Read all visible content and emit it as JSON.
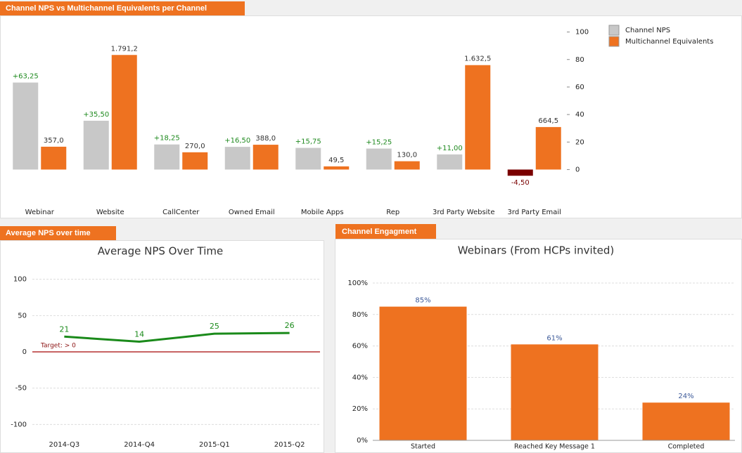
{
  "chart_data": [
    {
      "type": "bar",
      "title": "Channel NPS vs Multichannel Equivalents per Channel",
      "categories": [
        "Webinar",
        "Website",
        "CallCenter",
        "Owned Email",
        "Mobile Apps",
        "Rep",
        "3rd Party Website",
        "3rd Party Email"
      ],
      "series": [
        {
          "name": "Channel NPS",
          "color": "#c8c8c8",
          "negative_color": "#7a0000",
          "label_color": "#1f8a1f",
          "values": [
            63.25,
            35.5,
            18.25,
            16.5,
            15.75,
            15.25,
            11,
            -4.5
          ],
          "value_labels": [
            "+63,25",
            "+35,50",
            "+18,25",
            "+16,50",
            "+15,75",
            "+15,25",
            "+11,00",
            "-4,50"
          ]
        },
        {
          "name": "Multichannel Equivalents",
          "color": "#ee7220",
          "label_color": "#333333",
          "axis": "y2",
          "values": [
            357,
            1791.2,
            270,
            388,
            49.5,
            130,
            1632.5,
            664.5
          ],
          "value_labels": [
            "357,0",
            "1.791,2",
            "270,0",
            "388,0",
            "49,5",
            "130,0",
            "1.632,5",
            "664,5"
          ]
        }
      ],
      "ylim": [
        -10,
        110
      ],
      "yticks": [
        0,
        20,
        40,
        60,
        80,
        100
      ],
      "y2lim": [
        -215,
        2365
      ],
      "grid": false,
      "legend": "top-right"
    },
    {
      "type": "line",
      "title": "Average NPS over time",
      "chart_title": "Average NPS Over Time",
      "categories": [
        "2014-Q3",
        "2014-Q4",
        "2015-Q1",
        "2015-Q2"
      ],
      "values": [
        21,
        14,
        25,
        26
      ],
      "color": "#1a8a1a",
      "ylim": [
        -120,
        120
      ],
      "yticks": [
        -100,
        -50,
        0,
        50,
        100
      ],
      "grid": true,
      "target": {
        "text": "Target: > 0",
        "value": 0,
        "color": "#c86464"
      }
    },
    {
      "type": "bar",
      "title": "Channel Engagment",
      "chart_title": "Webinars (From HCPs invited)",
      "categories": [
        "Started",
        "Reached Key Message 1",
        "Completed"
      ],
      "values": [
        85,
        61,
        24
      ],
      "value_labels": [
        "85%",
        "61%",
        "24%"
      ],
      "color": "#ee7220",
      "label_color": "#3d5a99",
      "ylim": [
        0,
        100
      ],
      "yticks": [
        {
          "value": 0,
          "label": "0%"
        },
        {
          "value": 20,
          "label": "20%"
        },
        {
          "value": 40,
          "label": "40%"
        },
        {
          "value": 60,
          "label": "60%"
        },
        {
          "value": 80,
          "label": "80%"
        },
        {
          "value": 100,
          "label": "100%"
        }
      ],
      "grid": true
    }
  ]
}
